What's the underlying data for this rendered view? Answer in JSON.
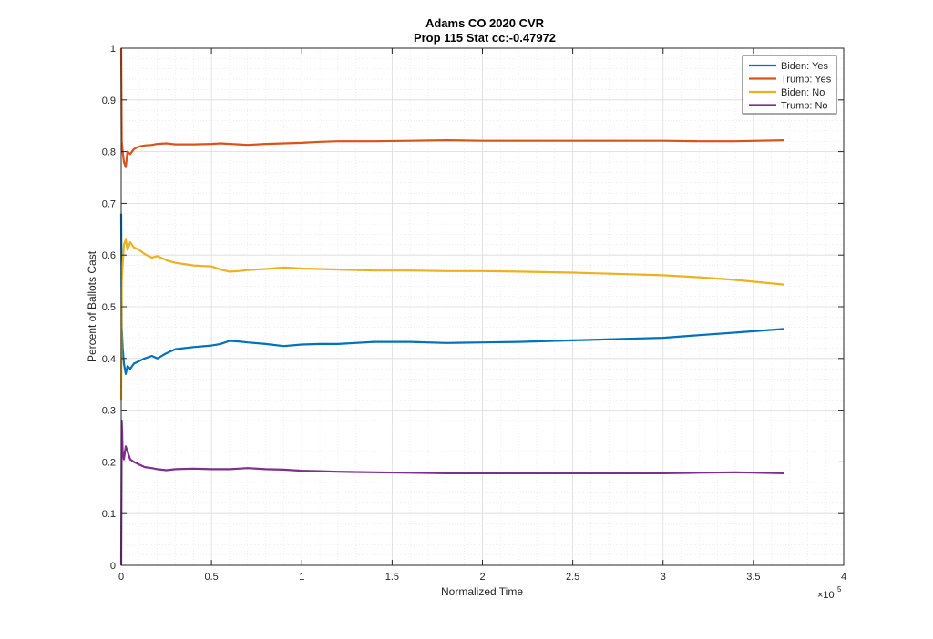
{
  "chart_data": {
    "type": "line",
    "title": "Adams CO 2020 CVR",
    "subtitle": "Prop 115 Stat cc:-0.47972",
    "xlabel": "Normalized Time",
    "ylabel": "Percent of Ballots Cast",
    "x_exponent_label": "×10",
    "x_exponent": "5",
    "xlim": [
      0,
      400000
    ],
    "ylim": [
      0,
      1
    ],
    "x_ticks": [
      0,
      50000,
      100000,
      150000,
      200000,
      250000,
      300000,
      350000,
      400000
    ],
    "x_tick_labels": [
      "0",
      "0.5",
      "1",
      "1.5",
      "2",
      "2.5",
      "3",
      "3.5",
      "4"
    ],
    "y_ticks": [
      0,
      0.1,
      0.2,
      0.3,
      0.4,
      0.5,
      0.6,
      0.7,
      0.8,
      0.9,
      1
    ],
    "y_tick_labels": [
      "0",
      "0.1",
      "0.2",
      "0.3",
      "0.4",
      "0.5",
      "0.6",
      "0.7",
      "0.8",
      "0.9",
      "1"
    ],
    "grid": true,
    "minor_grid": true,
    "legend_position": "top-right",
    "series": [
      {
        "name": "Biden: Yes",
        "color": "#0072BD",
        "x": [
          0,
          300,
          800,
          1500,
          2500,
          3500,
          5000,
          7000,
          10000,
          13000,
          17000,
          20000,
          25000,
          30000,
          40000,
          50000,
          55000,
          60000,
          65000,
          70000,
          80000,
          90000,
          100000,
          110000,
          120000,
          140000,
          160000,
          180000,
          200000,
          220000,
          250000,
          280000,
          300000,
          320000,
          340000,
          367000
        ],
        "y": [
          0.68,
          0.46,
          0.42,
          0.39,
          0.37,
          0.385,
          0.38,
          0.39,
          0.395,
          0.4,
          0.405,
          0.4,
          0.41,
          0.418,
          0.422,
          0.425,
          0.428,
          0.434,
          0.433,
          0.431,
          0.428,
          0.424,
          0.427,
          0.428,
          0.428,
          0.432,
          0.432,
          0.43,
          0.431,
          0.432,
          0.435,
          0.438,
          0.44,
          0.445,
          0.45,
          0.457
        ]
      },
      {
        "name": "Trump: Yes",
        "color": "#D95319",
        "x": [
          0,
          300,
          800,
          1500,
          2500,
          3500,
          5000,
          7000,
          10000,
          13000,
          17000,
          20000,
          25000,
          30000,
          40000,
          50000,
          55000,
          60000,
          65000,
          70000,
          80000,
          90000,
          100000,
          110000,
          120000,
          140000,
          160000,
          180000,
          200000,
          220000,
          250000,
          280000,
          300000,
          320000,
          340000,
          367000
        ],
        "y": [
          1.0,
          0.82,
          0.8,
          0.78,
          0.77,
          0.8,
          0.795,
          0.805,
          0.81,
          0.812,
          0.813,
          0.815,
          0.816,
          0.814,
          0.814,
          0.815,
          0.816,
          0.815,
          0.814,
          0.813,
          0.815,
          0.816,
          0.817,
          0.819,
          0.82,
          0.82,
          0.821,
          0.822,
          0.821,
          0.821,
          0.821,
          0.821,
          0.821,
          0.82,
          0.82,
          0.822
        ]
      },
      {
        "name": "Biden: No",
        "color": "#EDB120",
        "x": [
          0,
          300,
          800,
          1500,
          2500,
          3500,
          5000,
          7000,
          10000,
          13000,
          17000,
          20000,
          25000,
          30000,
          40000,
          50000,
          55000,
          60000,
          65000,
          70000,
          80000,
          90000,
          100000,
          110000,
          120000,
          140000,
          160000,
          180000,
          200000,
          220000,
          250000,
          280000,
          300000,
          320000,
          340000,
          367000
        ],
        "y": [
          0.32,
          0.55,
          0.58,
          0.62,
          0.63,
          0.61,
          0.625,
          0.615,
          0.61,
          0.602,
          0.595,
          0.598,
          0.59,
          0.585,
          0.58,
          0.578,
          0.572,
          0.568,
          0.569,
          0.571,
          0.573,
          0.576,
          0.574,
          0.573,
          0.572,
          0.57,
          0.57,
          0.569,
          0.569,
          0.568,
          0.566,
          0.563,
          0.561,
          0.557,
          0.552,
          0.543
        ]
      },
      {
        "name": "Trump: No",
        "color": "#7E2F8E",
        "x": [
          0,
          300,
          800,
          1500,
          2500,
          3500,
          5000,
          7000,
          10000,
          13000,
          17000,
          20000,
          25000,
          30000,
          40000,
          50000,
          55000,
          60000,
          65000,
          70000,
          80000,
          90000,
          100000,
          110000,
          120000,
          140000,
          160000,
          180000,
          200000,
          220000,
          250000,
          280000,
          300000,
          320000,
          340000,
          367000
        ],
        "y": [
          0.0,
          0.28,
          0.22,
          0.205,
          0.23,
          0.22,
          0.205,
          0.2,
          0.195,
          0.19,
          0.188,
          0.186,
          0.184,
          0.186,
          0.187,
          0.186,
          0.186,
          0.186,
          0.187,
          0.188,
          0.186,
          0.185,
          0.183,
          0.182,
          0.181,
          0.18,
          0.179,
          0.178,
          0.178,
          0.178,
          0.178,
          0.178,
          0.178,
          0.179,
          0.18,
          0.178
        ]
      }
    ]
  }
}
